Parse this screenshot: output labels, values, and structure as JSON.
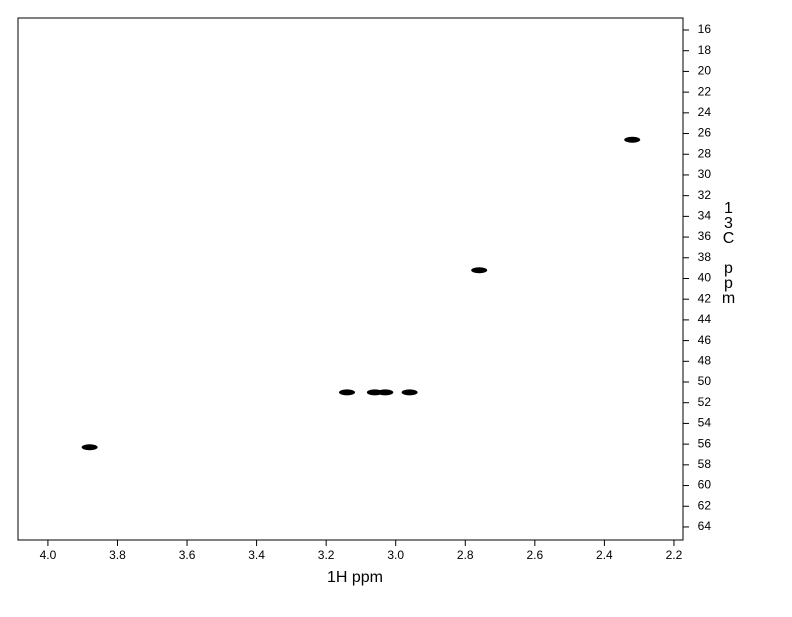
{
  "chart_data": {
    "type": "scatter",
    "x_label": "1H ppm",
    "y_label": "13C ppm",
    "x": [
      3.88,
      3.14,
      3.06,
      3.03,
      2.96,
      2.76,
      2.32
    ],
    "y": [
      56.3,
      51.0,
      51.0,
      51.0,
      51.0,
      39.2,
      26.6
    ],
    "color": "#000000",
    "xlim": [
      4.086,
      2.174
    ],
    "ylim": [
      65.26,
      14.84
    ],
    "xticks": [
      {
        "value": 4,
        "label": "4.0"
      },
      3.8,
      3.6,
      3.4,
      3.2,
      {
        "value": 3,
        "label": "3.0"
      },
      2.8,
      2.6,
      2.4,
      2.2
    ],
    "yticks": [
      16,
      18,
      20,
      22,
      24,
      26,
      28,
      30,
      32,
      34,
      36,
      38,
      40,
      42,
      44,
      46,
      48,
      50,
      52,
      54,
      56,
      58,
      60,
      62,
      64
    ]
  }
}
